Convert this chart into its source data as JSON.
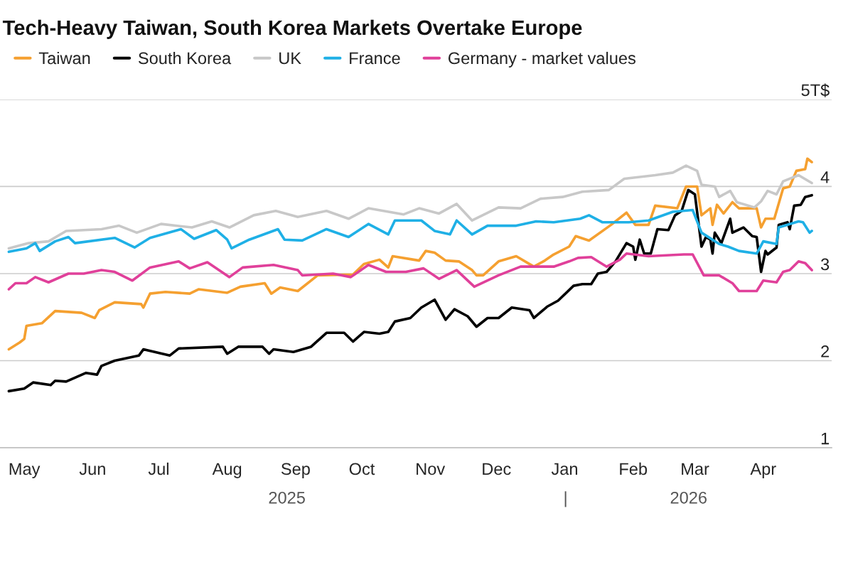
{
  "chart_data": {
    "type": "line",
    "title": "Tech-Heavy Taiwan, South Korea Markets Overtake Europe",
    "xlim": [
      "2025-04-20",
      "2026-05-02"
    ],
    "xticks": [
      {
        "value": "2025-05-01",
        "label": "May"
      },
      {
        "value": "2025-06-01",
        "label": "Jun"
      },
      {
        "value": "2025-07-01",
        "label": "Jul"
      },
      {
        "value": "2025-08-01",
        "label": "Aug"
      },
      {
        "value": "2025-09-01",
        "label": "Sep"
      },
      {
        "value": "2025-10-01",
        "label": "Oct"
      },
      {
        "value": "2025-11-01",
        "label": "Nov"
      },
      {
        "value": "2025-12-01",
        "label": "Dec"
      },
      {
        "value": "2026-01-01",
        "label": "Jan"
      },
      {
        "value": "2026-02-01",
        "label": "Feb"
      },
      {
        "value": "2026-03-01",
        "label": "Mar"
      },
      {
        "value": "2026-04-01",
        "label": "Apr"
      }
    ],
    "ylim": [
      1,
      5
    ],
    "yticks": [
      1,
      2,
      3,
      4,
      {
        "value": 5,
        "label": "5T$"
      }
    ],
    "grid": "y",
    "legend": "top left",
    "annotations": [
      "2025",
      "|",
      "2026"
    ],
    "series": [
      {
        "name": "Taiwan",
        "color": "#f5a030",
        "x": [
          "2025-04-24",
          "2025-04-29",
          "2025-05-01",
          "2025-05-02",
          "2025-05-09",
          "2025-05-15",
          "2025-05-27",
          "2025-06-02",
          "2025-06-04",
          "2025-06-11",
          "2025-06-23",
          "2025-06-24",
          "2025-06-27",
          "2025-07-04",
          "2025-07-15",
          "2025-07-19",
          "2025-08-01",
          "2025-08-07",
          "2025-08-18",
          "2025-08-21",
          "2025-08-25",
          "2025-09-02",
          "2025-09-11",
          "2025-09-27",
          "2025-10-02",
          "2025-10-09",
          "2025-10-13",
          "2025-10-15",
          "2025-10-27",
          "2025-10-30",
          "2025-11-03",
          "2025-11-08",
          "2025-11-14",
          "2025-11-20",
          "2025-11-22",
          "2025-11-25",
          "2025-12-02",
          "2025-12-10",
          "2025-12-18",
          "2025-12-23",
          "2025-12-27",
          "2026-01-03",
          "2026-01-06",
          "2026-01-12",
          "2026-01-22",
          "2026-01-29",
          "2026-02-02",
          "2026-02-08",
          "2026-02-11",
          "2026-02-21",
          "2026-02-25",
          "2026-03-02",
          "2026-03-04",
          "2026-03-08",
          "2026-03-09",
          "2026-03-11",
          "2026-03-14",
          "2026-03-18",
          "2026-03-21",
          "2026-03-29",
          "2026-03-31",
          "2026-04-02",
          "2026-04-06",
          "2026-04-10",
          "2026-04-13",
          "2026-04-16",
          "2026-04-20",
          "2026-04-21",
          "2026-04-23"
        ],
        "values": [
          2.13,
          2.21,
          2.25,
          2.4,
          2.43,
          2.57,
          2.55,
          2.49,
          2.58,
          2.67,
          2.65,
          2.61,
          2.77,
          2.79,
          2.77,
          2.82,
          2.78,
          2.85,
          2.89,
          2.77,
          2.84,
          2.8,
          2.98,
          2.99,
          3.11,
          3.16,
          3.07,
          3.2,
          3.15,
          3.26,
          3.24,
          3.15,
          3.14,
          3.04,
          2.98,
          2.98,
          3.14,
          3.2,
          3.08,
          3.15,
          3.22,
          3.31,
          3.43,
          3.38,
          3.56,
          3.7,
          3.56,
          3.56,
          3.78,
          3.75,
          4.0,
          4.0,
          3.67,
          3.75,
          3.56,
          3.79,
          3.69,
          3.82,
          3.75,
          3.75,
          3.53,
          3.63,
          3.63,
          3.98,
          4.0,
          4.18,
          4.2,
          4.32,
          4.28
        ]
      },
      {
        "name": "South Korea",
        "color": "#000000",
        "x": [
          "2025-04-24",
          "2025-05-01",
          "2025-05-05",
          "2025-05-13",
          "2025-05-15",
          "2025-05-20",
          "2025-05-29",
          "2025-06-03",
          "2025-06-05",
          "2025-06-11",
          "2025-06-22",
          "2025-06-24",
          "2025-07-06",
          "2025-07-10",
          "2025-07-30",
          "2025-08-01",
          "2025-08-06",
          "2025-08-17",
          "2025-08-20",
          "2025-08-22",
          "2025-08-31",
          "2025-09-08",
          "2025-09-15",
          "2025-09-23",
          "2025-09-27",
          "2025-10-02",
          "2025-10-09",
          "2025-10-13",
          "2025-10-16",
          "2025-10-23",
          "2025-10-28",
          "2025-11-03",
          "2025-11-08",
          "2025-11-12",
          "2025-11-18",
          "2025-11-22",
          "2025-11-27",
          "2025-12-02",
          "2025-12-08",
          "2025-12-16",
          "2025-12-18",
          "2025-12-24",
          "2025-12-29",
          "2026-01-05",
          "2026-01-09",
          "2026-01-13",
          "2026-01-16",
          "2026-01-20",
          "2026-01-24",
          "2026-01-29",
          "2026-02-01",
          "2026-02-02",
          "2026-02-04",
          "2026-02-06",
          "2026-02-09",
          "2026-02-12",
          "2026-02-17",
          "2026-02-20",
          "2026-02-23",
          "2026-02-26",
          "2026-03-01",
          "2026-03-04",
          "2026-03-06",
          "2026-03-08",
          "2026-03-09",
          "2026-03-10",
          "2026-03-13",
          "2026-03-17",
          "2026-03-18",
          "2026-03-23",
          "2026-03-27",
          "2026-03-29",
          "2026-03-31",
          "2026-04-02",
          "2026-04-03",
          "2026-04-07",
          "2026-04-08",
          "2026-04-12",
          "2026-04-13",
          "2026-04-15",
          "2026-04-18",
          "2026-04-20",
          "2026-04-23"
        ],
        "values": [
          1.65,
          1.68,
          1.75,
          1.72,
          1.77,
          1.76,
          1.86,
          1.84,
          1.94,
          2.0,
          2.06,
          2.13,
          2.06,
          2.14,
          2.16,
          2.08,
          2.16,
          2.16,
          2.08,
          2.13,
          2.1,
          2.16,
          2.32,
          2.32,
          2.22,
          2.33,
          2.31,
          2.33,
          2.45,
          2.49,
          2.61,
          2.7,
          2.47,
          2.59,
          2.51,
          2.39,
          2.49,
          2.49,
          2.61,
          2.58,
          2.49,
          2.62,
          2.69,
          2.86,
          2.88,
          2.88,
          3.0,
          3.02,
          3.14,
          3.35,
          3.31,
          3.16,
          3.39,
          3.23,
          3.23,
          3.51,
          3.5,
          3.67,
          3.72,
          3.96,
          3.91,
          3.31,
          3.42,
          3.39,
          3.23,
          3.47,
          3.35,
          3.63,
          3.47,
          3.53,
          3.43,
          3.42,
          3.02,
          3.26,
          3.22,
          3.3,
          3.56,
          3.59,
          3.51,
          3.78,
          3.79,
          3.88,
          3.9
        ]
      },
      {
        "name": "UK",
        "color": "#c8c8c8",
        "x": [
          "2025-04-24",
          "2025-05-03",
          "2025-05-12",
          "2025-05-20",
          "2025-06-05",
          "2025-06-13",
          "2025-06-21",
          "2025-07-02",
          "2025-07-16",
          "2025-07-25",
          "2025-08-02",
          "2025-08-13",
          "2025-08-23",
          "2025-09-02",
          "2025-09-15",
          "2025-09-25",
          "2025-10-04",
          "2025-10-20",
          "2025-10-27",
          "2025-11-05",
          "2025-11-13",
          "2025-11-20",
          "2025-12-02",
          "2025-12-12",
          "2025-12-21",
          "2025-12-31",
          "2026-01-09",
          "2026-01-21",
          "2026-01-28",
          "2026-02-11",
          "2026-02-19",
          "2026-02-25",
          "2026-03-02",
          "2026-03-04",
          "2026-03-10",
          "2026-03-12",
          "2026-03-17",
          "2026-03-20",
          "2026-03-28",
          "2026-03-31",
          "2026-04-03",
          "2026-04-07",
          "2026-04-10",
          "2026-04-17",
          "2026-04-23"
        ],
        "values": [
          3.29,
          3.35,
          3.37,
          3.49,
          3.51,
          3.55,
          3.47,
          3.57,
          3.53,
          3.6,
          3.53,
          3.67,
          3.72,
          3.65,
          3.72,
          3.63,
          3.75,
          3.68,
          3.75,
          3.69,
          3.8,
          3.61,
          3.76,
          3.75,
          3.86,
          3.88,
          3.94,
          3.96,
          4.09,
          4.13,
          4.16,
          4.24,
          4.18,
          4.02,
          4.0,
          3.88,
          3.95,
          3.82,
          3.76,
          3.83,
          3.95,
          3.91,
          4.06,
          4.13,
          4.04
        ]
      },
      {
        "name": "France",
        "color": "#1fb0e6",
        "x": [
          "2025-04-24",
          "2025-05-02",
          "2025-05-06",
          "2025-05-08",
          "2025-05-15",
          "2025-05-21",
          "2025-05-24",
          "2025-06-11",
          "2025-06-20",
          "2025-06-27",
          "2025-07-11",
          "2025-07-17",
          "2025-07-27",
          "2025-08-01",
          "2025-08-03",
          "2025-08-11",
          "2025-08-24",
          "2025-08-27",
          "2025-09-04",
          "2025-09-15",
          "2025-09-25",
          "2025-10-04",
          "2025-10-13",
          "2025-10-16",
          "2025-10-28",
          "2025-11-03",
          "2025-11-10",
          "2025-11-13",
          "2025-11-20",
          "2025-11-27",
          "2025-12-10",
          "2025-12-19",
          "2025-12-27",
          "2026-01-08",
          "2026-01-12",
          "2026-01-18",
          "2026-01-30",
          "2026-02-08",
          "2026-02-19",
          "2026-02-28",
          "2026-03-04",
          "2026-03-12",
          "2026-03-16",
          "2026-03-21",
          "2026-03-29",
          "2026-04-01",
          "2026-04-07",
          "2026-04-08",
          "2026-04-17",
          "2026-04-19",
          "2026-04-22",
          "2026-04-23"
        ],
        "values": [
          3.25,
          3.29,
          3.35,
          3.26,
          3.37,
          3.42,
          3.35,
          3.41,
          3.3,
          3.41,
          3.51,
          3.4,
          3.5,
          3.39,
          3.29,
          3.39,
          3.51,
          3.39,
          3.38,
          3.51,
          3.42,
          3.57,
          3.45,
          3.61,
          3.61,
          3.49,
          3.45,
          3.61,
          3.45,
          3.55,
          3.55,
          3.6,
          3.59,
          3.63,
          3.67,
          3.59,
          3.59,
          3.61,
          3.71,
          3.73,
          3.47,
          3.34,
          3.31,
          3.26,
          3.23,
          3.37,
          3.34,
          3.53,
          3.6,
          3.59,
          3.47,
          3.49
        ]
      },
      {
        "name": "Germany - market values",
        "color": "#e0409a",
        "x": [
          "2025-04-24",
          "2025-04-27",
          "2025-05-02",
          "2025-05-06",
          "2025-05-12",
          "2025-05-21",
          "2025-05-28",
          "2025-06-05",
          "2025-06-11",
          "2025-06-19",
          "2025-06-27",
          "2025-07-10",
          "2025-07-15",
          "2025-07-23",
          "2025-08-02",
          "2025-08-08",
          "2025-08-22",
          "2025-09-02",
          "2025-09-04",
          "2025-09-18",
          "2025-09-26",
          "2025-10-04",
          "2025-10-12",
          "2025-10-21",
          "2025-10-29",
          "2025-11-05",
          "2025-11-13",
          "2025-11-21",
          "2025-12-02",
          "2025-12-12",
          "2025-12-27",
          "2026-01-03",
          "2026-01-07",
          "2026-01-13",
          "2026-01-20",
          "2026-01-26",
          "2026-01-29",
          "2026-02-08",
          "2026-02-24",
          "2026-02-28",
          "2026-03-05",
          "2026-03-12",
          "2026-03-18",
          "2026-03-21",
          "2026-03-29",
          "2026-04-01",
          "2026-04-07",
          "2026-04-10",
          "2026-04-13",
          "2026-04-17",
          "2026-04-20",
          "2026-04-23"
        ],
        "values": [
          2.82,
          2.89,
          2.89,
          2.96,
          2.9,
          3.0,
          3.0,
          3.04,
          3.02,
          2.92,
          3.07,
          3.14,
          3.06,
          3.13,
          2.96,
          3.07,
          3.1,
          3.04,
          2.98,
          3.0,
          2.96,
          3.1,
          3.02,
          3.02,
          3.06,
          2.94,
          3.04,
          2.85,
          2.98,
          3.08,
          3.08,
          3.14,
          3.18,
          3.19,
          3.08,
          3.16,
          3.23,
          3.2,
          3.22,
          3.22,
          2.98,
          2.98,
          2.89,
          2.8,
          2.8,
          2.92,
          2.9,
          3.02,
          3.04,
          3.14,
          3.12,
          3.04
        ]
      }
    ]
  }
}
